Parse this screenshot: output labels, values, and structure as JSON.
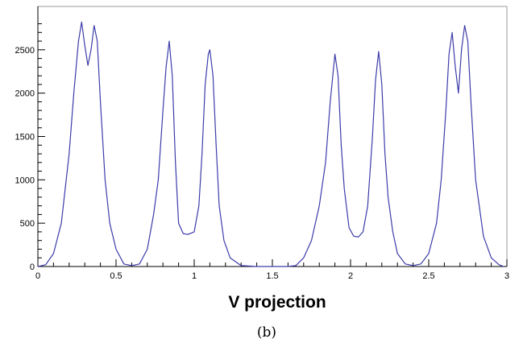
{
  "chart_data": {
    "type": "line",
    "title": "",
    "xlabel": "V projection",
    "ylabel": "",
    "caption": "(b)",
    "xlim": [
      0,
      3
    ],
    "ylim": [
      0,
      3000
    ],
    "grid": false,
    "legend": "none",
    "xticks": [
      0,
      0.5,
      1,
      1.5,
      2,
      2.5,
      3
    ],
    "xtick_labels": [
      "0",
      "0.5",
      "1",
      "1.5",
      "2",
      "2.5",
      "3"
    ],
    "yticks": [
      0,
      500,
      1000,
      1500,
      2000,
      2500
    ],
    "ytick_labels": [
      "0",
      "500",
      "1000",
      "1500",
      "2000",
      "2500"
    ],
    "series": [
      {
        "name": "",
        "color": "#3c3caa",
        "x": [
          0,
          0.05,
          0.1,
          0.15,
          0.2,
          0.23,
          0.26,
          0.28,
          0.3,
          0.32,
          0.34,
          0.36,
          0.38,
          0.4,
          0.43,
          0.46,
          0.5,
          0.55,
          0.6,
          0.65,
          0.7,
          0.74,
          0.77,
          0.8,
          0.82,
          0.84,
          0.86,
          0.88,
          0.9,
          0.93,
          0.96,
          1.0,
          1.03,
          1.05,
          1.07,
          1.09,
          1.1,
          1.12,
          1.14,
          1.16,
          1.19,
          1.23,
          1.3,
          1.4,
          1.5,
          1.6,
          1.65,
          1.7,
          1.75,
          1.8,
          1.84,
          1.87,
          1.9,
          1.92,
          1.94,
          1.96,
          1.99,
          2.02,
          2.05,
          2.08,
          2.11,
          2.14,
          2.16,
          2.18,
          2.2,
          2.22,
          2.24,
          2.27,
          2.3,
          2.35,
          2.4,
          2.45,
          2.5,
          2.55,
          2.58,
          2.61,
          2.63,
          2.65,
          2.67,
          2.69,
          2.71,
          2.73,
          2.75,
          2.77,
          2.8,
          2.85,
          2.9,
          2.95,
          2.98
        ],
        "y": [
          0,
          20,
          150,
          500,
          1300,
          2000,
          2600,
          2820,
          2550,
          2320,
          2500,
          2780,
          2600,
          1900,
          1000,
          500,
          200,
          30,
          10,
          30,
          200,
          600,
          1000,
          1800,
          2300,
          2600,
          2200,
          1200,
          500,
          380,
          370,
          400,
          700,
          1300,
          2100,
          2450,
          2500,
          2200,
          1400,
          700,
          300,
          100,
          10,
          0,
          0,
          0,
          10,
          100,
          300,
          700,
          1200,
          1900,
          2450,
          2200,
          1400,
          900,
          450,
          350,
          340,
          400,
          700,
          1500,
          2150,
          2480,
          2100,
          1300,
          800,
          400,
          150,
          30,
          10,
          30,
          150,
          500,
          1000,
          1800,
          2450,
          2700,
          2300,
          2000,
          2500,
          2780,
          2600,
          1900,
          1000,
          350,
          100,
          20,
          0
        ]
      }
    ]
  }
}
